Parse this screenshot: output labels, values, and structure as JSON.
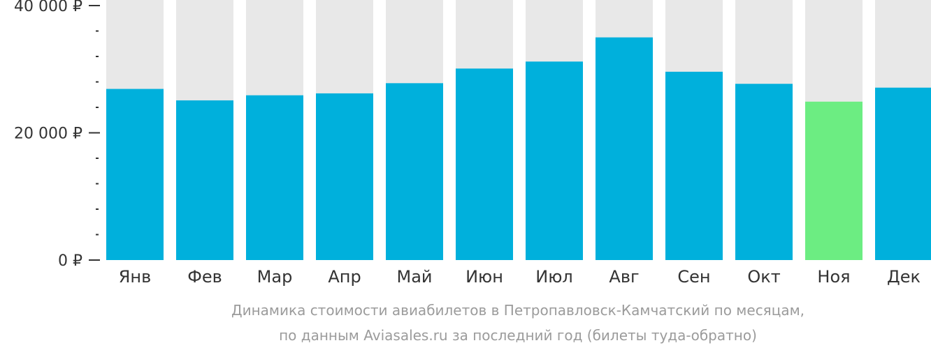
{
  "chart_data": {
    "type": "bar",
    "categories": [
      "Янв",
      "Фев",
      "Мар",
      "Апр",
      "Май",
      "Июн",
      "Июл",
      "Авг",
      "Сен",
      "Окт",
      "Ноя",
      "Дек"
    ],
    "values": [
      26900,
      25100,
      25900,
      26200,
      27800,
      30100,
      31200,
      35000,
      29600,
      27700,
      24900,
      27100
    ],
    "ylim": [
      0,
      40000
    ],
    "yticks": [
      {
        "value": 0,
        "label": "0 ₽"
      },
      {
        "value": 20000,
        "label": "20 000 ₽"
      },
      {
        "value": 40000,
        "label": "40 000 ₽"
      }
    ],
    "minor_tick_step": 4000,
    "highlight_index": 10,
    "colors": {
      "bar": "#00b0dc",
      "highlight": "#6ced82",
      "track": "#e8e8e8",
      "axis": "#333333"
    },
    "caption": [
      "Динамика стоимости авиабилетов в Петропавловск-Камчатский по месяцам,",
      "по данным Aviasales.ru за последний год (билеты туда-обратно)"
    ],
    "grid": false,
    "legend": "none"
  }
}
